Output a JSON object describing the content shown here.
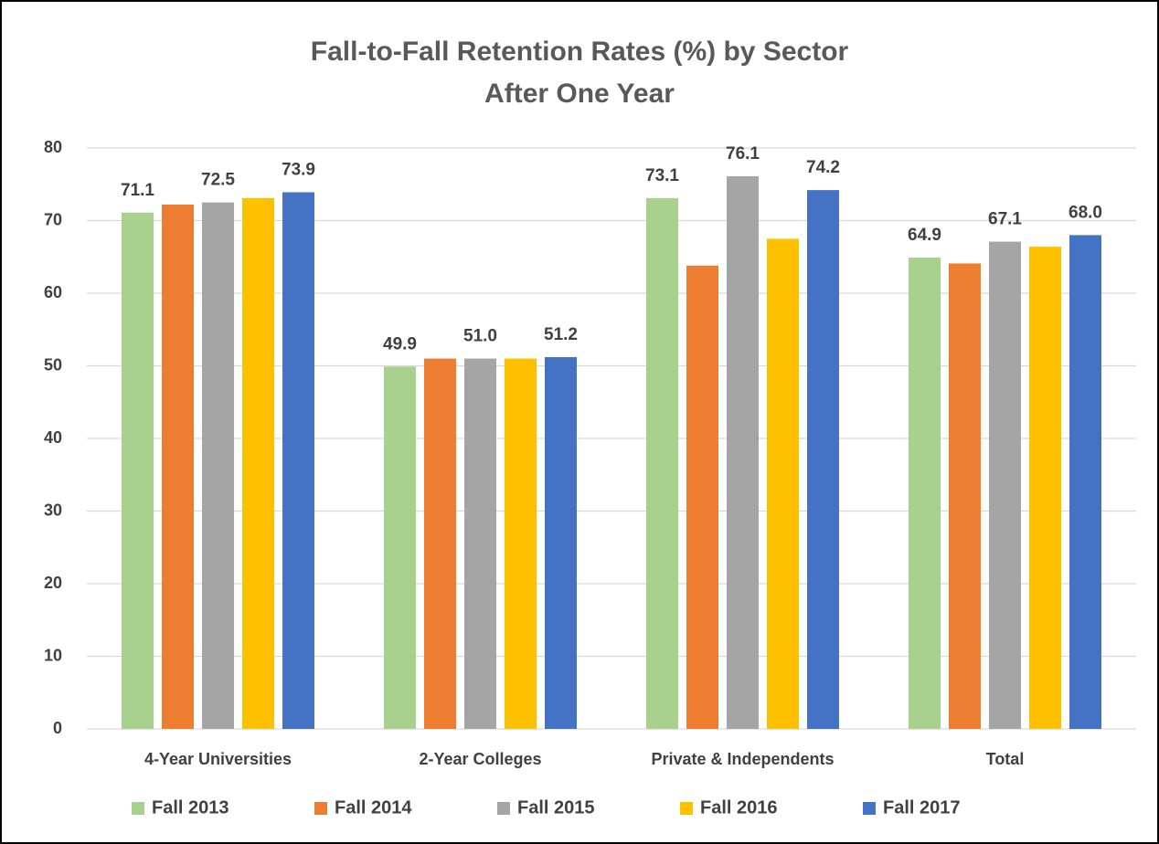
{
  "chart_data": {
    "type": "bar",
    "title": "Fall-to-Fall Retention Rates (%) by Sector",
    "subtitle": "After One Year",
    "categories": [
      "4-Year Universities",
      "2-Year Colleges",
      "Private & Independents",
      "Total"
    ],
    "series": [
      {
        "name": "Fall 2013",
        "color": "#a9d18e",
        "values": [
          71.1,
          49.9,
          73.1,
          64.9
        ],
        "value_labels": [
          "71.1",
          "49.9",
          "73.1",
          "64.9"
        ]
      },
      {
        "name": "Fall 2014",
        "color": "#ed7d31",
        "values": [
          72.2,
          51.0,
          63.8,
          64.1
        ]
      },
      {
        "name": "Fall 2015",
        "color": "#a5a5a5",
        "values": [
          72.5,
          51.0,
          76.1,
          67.1
        ],
        "value_labels": [
          "72.5",
          "51.0",
          "76.1",
          "67.1"
        ]
      },
      {
        "name": "Fall 2016",
        "color": "#ffc000",
        "values": [
          73.1,
          51.0,
          67.5,
          66.4
        ]
      },
      {
        "name": "Fall 2017",
        "color": "#4472c4",
        "values": [
          73.9,
          51.2,
          74.2,
          68.0
        ],
        "value_labels": [
          "73.9",
          "51.2",
          "74.2",
          "68.0"
        ]
      }
    ],
    "ylim": [
      0,
      80
    ],
    "yticks": [
      0,
      10,
      20,
      30,
      40,
      50,
      60,
      70,
      80
    ],
    "grid": true,
    "legend": "bottom"
  }
}
